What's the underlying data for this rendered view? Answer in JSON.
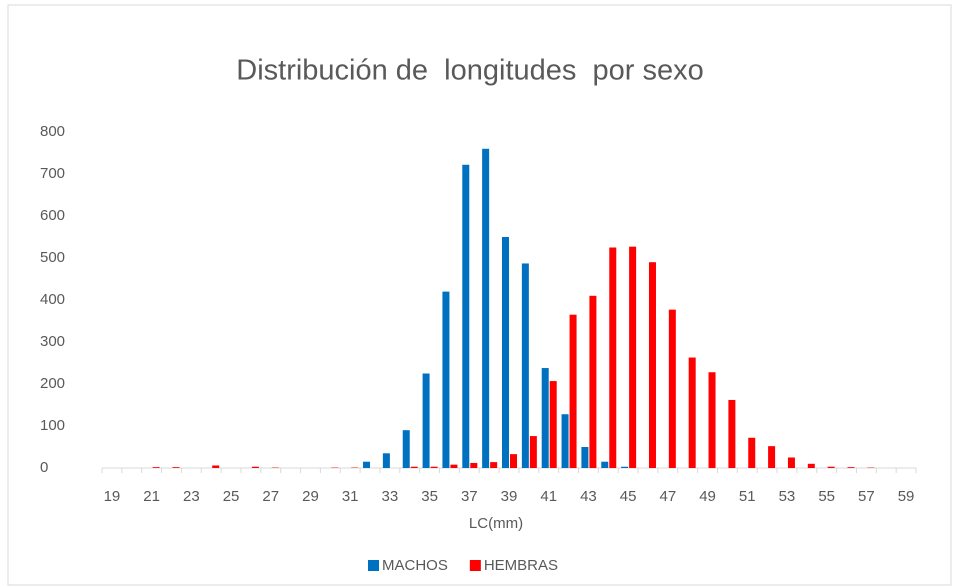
{
  "chart_data": {
    "type": "bar",
    "title": "Distribución de  longitudes  por sexo",
    "x_label": "LC(mm)",
    "categories": [
      19,
      null,
      21,
      null,
      23,
      null,
      25,
      null,
      27,
      null,
      29,
      null,
      31,
      null,
      33,
      null,
      35,
      null,
      37,
      null,
      39,
      null,
      41,
      null,
      43,
      null,
      45,
      null,
      47,
      null,
      49,
      null,
      51,
      null,
      53,
      null,
      55,
      null,
      57,
      null,
      59
    ],
    "series": [
      {
        "name": "MACHOS",
        "color": "#0070c0",
        "values": [
          0,
          0,
          0,
          0,
          0,
          0,
          0,
          0,
          0,
          0,
          0,
          0,
          0,
          15,
          35,
          90,
          225,
          420,
          722,
          760,
          550,
          487,
          238,
          128,
          50,
          15,
          3,
          0,
          0,
          0,
          0,
          0,
          0,
          0,
          0,
          0,
          0,
          0,
          0,
          0,
          0
        ]
      },
      {
        "name": "HEMBRAS",
        "color": "#ff0000",
        "values": [
          0,
          0,
          2,
          2,
          0,
          6,
          0,
          3,
          1,
          0,
          0,
          1,
          1,
          0,
          0,
          3,
          3,
          8,
          12,
          14,
          33,
          76,
          207,
          365,
          410,
          525,
          527,
          490,
          377,
          263,
          228,
          162,
          72,
          52,
          25,
          10,
          3,
          2,
          1,
          0,
          0
        ]
      }
    ],
    "ylim": [
      0,
      800
    ],
    "yticks": [
      0,
      100,
      200,
      300,
      400,
      500,
      600,
      700,
      800
    ],
    "grid": false,
    "legend": "bottom"
  }
}
